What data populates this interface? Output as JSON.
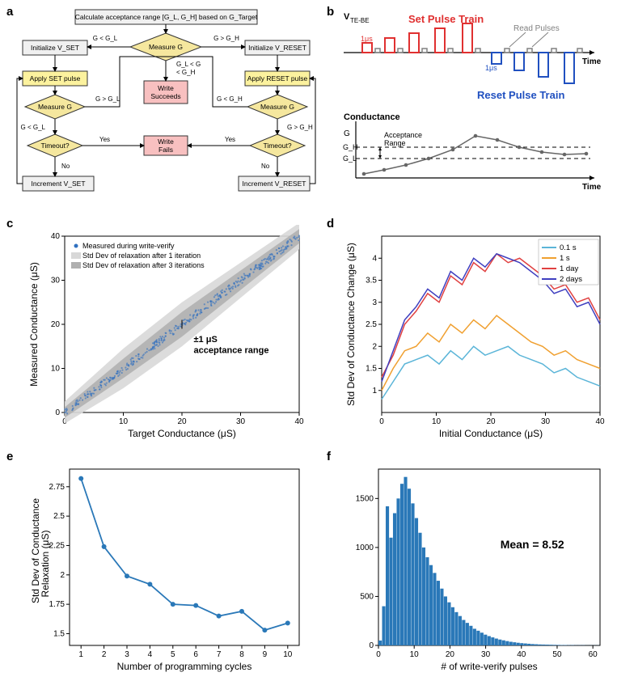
{
  "panel_labels": {
    "a": "a",
    "b": "b",
    "c": "c",
    "d": "d",
    "e": "e",
    "f": "f"
  },
  "flowchart": {
    "top": "Calculate acceptance range [G_L, G_H] based on G_Target",
    "init_set": "Initialize V_SET",
    "init_reset": "Initialize V_RESET",
    "apply_set": "Apply SET pulse",
    "apply_reset": "Apply RESET pulse",
    "measure": "Measure G",
    "write_succ": "Write\nSucceeds",
    "write_fail": "Write\nFails",
    "timeout": "Timeout?",
    "inc_set": "Increment V_SET",
    "inc_reset": "Increment V_RESET",
    "yes": "Yes",
    "no": "No",
    "glt": "G < G_L",
    "ggt": "G > G_H",
    "gin": "G_L < G\n< G_H",
    "colors": {
      "rect": "#f0f0f0",
      "yellow": "#fcf29e",
      "pink": "#f8c0c0",
      "diamond": "#f5e79e",
      "border": "#333"
    }
  },
  "pulses": {
    "vlabel": "V_TE-BE",
    "set_label": "Set Pulse Train",
    "reset_label": "Reset Pulse Train",
    "read_label": "Read Pulses",
    "time": "Time",
    "one_us": "1μs",
    "set_color": "#e03030",
    "reset_color": "#2050c0",
    "read_color": "#808080",
    "g_label": "Conductance",
    "g": "G",
    "gh": "G_H",
    "gl": "G_L",
    "acc": "Acceptance\nRange"
  },
  "panel_c": {
    "xlabel": "Target Conductance (μS)",
    "ylabel": "Measured Conductance (μS)",
    "xlim": [
      0,
      40
    ],
    "ylim": [
      0,
      40
    ],
    "ticks": [
      0,
      10,
      20,
      30,
      40
    ],
    "leg1": "Measured during write-verify",
    "leg2": "Std Dev of relaxation after 1 iteration",
    "leg3": "Std Dev of relaxation after 3 iterations",
    "ann": "±1 μS\nacceptance range",
    "dot_color": "#3070c0",
    "band1": "#d8d8d8",
    "band2": "#b0b0b0",
    "band1_widths": [
      2.5,
      4.5,
      5.0,
      4.0,
      3.0
    ],
    "band2_widths": [
      1.2,
      2.2,
      2.8,
      2.2,
      1.6
    ]
  },
  "panel_d": {
    "xlabel": "Initial Conductance (μS)",
    "ylabel": "Std Dev of Conductance Change (μS)",
    "xlim": [
      0,
      40
    ],
    "ylim": [
      0.5,
      4.5
    ],
    "xticks": [
      0,
      10,
      20,
      30,
      40
    ],
    "yticks": [
      1.0,
      1.5,
      2.0,
      2.5,
      3.0,
      3.5,
      4.0
    ],
    "series": [
      {
        "name": "0.1 s",
        "color": "#5bb5d8",
        "y": [
          0.8,
          1.2,
          1.6,
          1.7,
          1.8,
          1.6,
          1.9,
          1.7,
          2.0,
          1.8,
          1.9,
          2.0,
          1.8,
          1.7,
          1.6,
          1.4,
          1.5,
          1.3,
          1.2,
          1.1
        ]
      },
      {
        "name": "1 s",
        "color": "#f0a030",
        "y": [
          1.0,
          1.5,
          1.9,
          2.0,
          2.3,
          2.1,
          2.5,
          2.3,
          2.6,
          2.4,
          2.7,
          2.5,
          2.3,
          2.1,
          2.0,
          1.8,
          1.9,
          1.7,
          1.6,
          1.5
        ]
      },
      {
        "name": "1 day",
        "color": "#e04040",
        "y": [
          1.3,
          1.8,
          2.5,
          2.8,
          3.2,
          3.0,
          3.6,
          3.4,
          3.9,
          3.7,
          4.1,
          3.9,
          4.0,
          3.8,
          3.6,
          3.3,
          3.4,
          3.0,
          3.1,
          2.6
        ]
      },
      {
        "name": "2 days",
        "color": "#4040c0",
        "y": [
          1.2,
          1.9,
          2.6,
          2.9,
          3.3,
          3.1,
          3.7,
          3.5,
          4.0,
          3.8,
          4.1,
          4.0,
          3.9,
          3.7,
          3.5,
          3.2,
          3.3,
          2.9,
          3.0,
          2.5
        ]
      }
    ]
  },
  "panel_e": {
    "xlabel": "Number of programming cycles",
    "ylabel": "Std Dev of Conductance\nRelaxation (μS)",
    "xticks": [
      1,
      2,
      3,
      4,
      5,
      6,
      7,
      8,
      9,
      10
    ],
    "yticks": [
      1.5,
      1.75,
      2.0,
      2.25,
      2.5,
      2.75
    ],
    "y": [
      2.82,
      2.24,
      1.99,
      1.92,
      1.75,
      1.74,
      1.65,
      1.69,
      1.53,
      1.59
    ],
    "color": "#2a78b8"
  },
  "panel_f": {
    "xlabel": "# of write-verify pulses",
    "ylabel": " ",
    "xticks": [
      0,
      10,
      20,
      30,
      40,
      50,
      60
    ],
    "yticks": [
      0,
      500,
      1000,
      1500
    ],
    "ann": "Mean = 8.52",
    "color": "#2a78b8",
    "counts": [
      50,
      400,
      1420,
      1100,
      1350,
      1500,
      1650,
      1720,
      1600,
      1450,
      1300,
      1150,
      1000,
      900,
      820,
      740,
      660,
      580,
      500,
      440,
      390,
      340,
      300,
      260,
      230,
      200,
      170,
      150,
      130,
      110,
      95,
      82,
      70,
      60,
      52,
      44,
      37,
      32,
      27,
      23,
      20,
      17,
      14,
      12,
      10,
      9,
      8,
      7,
      6,
      5,
      4,
      4,
      3,
      3,
      2,
      2,
      2,
      1,
      1,
      1,
      1
    ]
  }
}
